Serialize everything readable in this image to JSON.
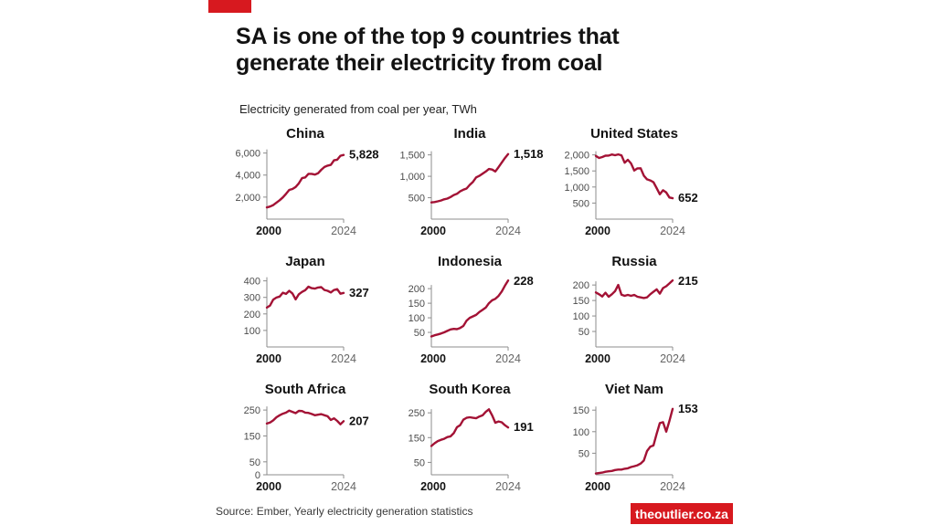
{
  "page": {
    "title_line1": "SA is one of the top 9 countries that",
    "title_line2": "generate their electricity from coal",
    "subtitle": "Electricity generated from coal per year, TWh",
    "source": "Source: Ember, Yearly electricity generation statistics",
    "badge": "theoutlier.co.za"
  },
  "colors": {
    "accent_red": "#d7191f",
    "line_red": "#a31235",
    "axis_gray": "#8c8c8c",
    "tick_label_gray": "#4c4c4c",
    "year_end_gray": "#666666",
    "text_dark": "#121212"
  },
  "chart_data": [
    {
      "type": "line",
      "title": "China",
      "end_label": "5,828",
      "yticks": [
        2000,
        4000,
        6000
      ],
      "ylim": [
        0,
        6300
      ],
      "x_start": 2000,
      "x_end": 2024,
      "xtick_labels": [
        "2000",
        "2024"
      ],
      "values": [
        1060,
        1145,
        1280,
        1500,
        1715,
        1970,
        2300,
        2655,
        2735,
        2915,
        3250,
        3720,
        3785,
        4110,
        4115,
        4045,
        4165,
        4475,
        4730,
        4855,
        4920,
        5340,
        5400,
        5755,
        5828
      ]
    },
    {
      "type": "line",
      "title": "India",
      "end_label": "1,518",
      "yticks": [
        500,
        1000,
        1500
      ],
      "ylim": [
        0,
        1620
      ],
      "x_start": 2000,
      "x_end": 2024,
      "xtick_labels": [
        "2000",
        "2024"
      ],
      "values": [
        390,
        398,
        416,
        434,
        462,
        479,
        516,
        562,
        590,
        647,
        687,
        715,
        800,
        870,
        975,
        1010,
        1062,
        1110,
        1171,
        1157,
        1113,
        1213,
        1319,
        1427,
        1518
      ]
    },
    {
      "type": "line",
      "title": "United States",
      "end_label": "652",
      "yticks": [
        500,
        1000,
        1500,
        2000
      ],
      "ylim": [
        0,
        2160
      ],
      "x_start": 2000,
      "x_end": 2024,
      "xtick_labels": [
        "2000",
        "2024"
      ],
      "values": [
        1966,
        1904,
        1933,
        1974,
        1978,
        2013,
        1990,
        2016,
        1986,
        1756,
        1847,
        1733,
        1514,
        1581,
        1582,
        1352,
        1239,
        1206,
        1150,
        966,
        774,
        899,
        831,
        675,
        652
      ]
    },
    {
      "type": "line",
      "title": "Japan",
      "end_label": "327",
      "yticks": [
        100,
        200,
        300,
        400
      ],
      "ylim": [
        0,
        420
      ],
      "x_start": 2000,
      "x_end": 2024,
      "xtick_labels": [
        "2000",
        "2024"
      ],
      "values": [
        238,
        251,
        287,
        299,
        305,
        328,
        321,
        340,
        324,
        288,
        319,
        333,
        344,
        365,
        356,
        353,
        360,
        362,
        345,
        340,
        330,
        345,
        350,
        322,
        327
      ]
    },
    {
      "type": "line",
      "title": "Indonesia",
      "end_label": "228",
      "yticks": [
        50,
        100,
        150,
        200
      ],
      "ylim": [
        0,
        238
      ],
      "x_start": 2000,
      "x_end": 2024,
      "xtick_labels": [
        "2000",
        "2024"
      ],
      "values": [
        36,
        40,
        43,
        46,
        50,
        55,
        60,
        62,
        61,
        65,
        72,
        90,
        100,
        105,
        110,
        120,
        127,
        135,
        150,
        160,
        165,
        175,
        190,
        210,
        228
      ]
    },
    {
      "type": "line",
      "title": "Russia",
      "end_label": "215",
      "yticks": [
        50,
        100,
        150,
        200
      ],
      "ylim": [
        0,
        224
      ],
      "x_start": 2000,
      "x_end": 2024,
      "xtick_labels": [
        "2000",
        "2024"
      ],
      "values": [
        176,
        170,
        163,
        175,
        162,
        170,
        180,
        200,
        169,
        165,
        168,
        165,
        168,
        162,
        160,
        158,
        160,
        170,
        178,
        186,
        172,
        190,
        196,
        205,
        215
      ]
    },
    {
      "type": "line",
      "title": "South Africa",
      "end_label": "207",
      "yticks": [
        0,
        50,
        150,
        250
      ],
      "ylim": [
        0,
        268
      ],
      "x_start": 2000,
      "x_end": 2024,
      "xtick_labels": [
        "2000",
        "2024"
      ],
      "values": [
        198,
        202,
        210,
        222,
        230,
        236,
        240,
        248,
        243,
        238,
        247,
        246,
        240,
        239,
        235,
        230,
        232,
        234,
        230,
        226,
        212,
        218,
        208,
        195,
        207
      ]
    },
    {
      "type": "line",
      "title": "South Korea",
      "end_label": "191",
      "yticks": [
        50,
        150,
        250
      ],
      "ylim": [
        0,
        280
      ],
      "x_start": 2000,
      "x_end": 2024,
      "xtick_labels": [
        "2000",
        "2024"
      ],
      "values": [
        116,
        127,
        136,
        141,
        145,
        152,
        155,
        168,
        192,
        200,
        222,
        230,
        232,
        230,
        228,
        235,
        240,
        254,
        264,
        240,
        210,
        215,
        212,
        200,
        191
      ]
    },
    {
      "type": "line",
      "title": "Viet Nam",
      "end_label": "153",
      "yticks": [
        50,
        100,
        150
      ],
      "ylim": [
        0,
        161
      ],
      "x_start": 2000,
      "x_end": 2024,
      "xtick_labels": [
        "2000",
        "2024"
      ],
      "values": [
        3,
        4,
        5,
        7,
        8,
        9,
        11,
        12,
        12,
        14,
        15,
        18,
        20,
        22,
        26,
        33,
        55,
        65,
        68,
        95,
        120,
        122,
        100,
        125,
        153
      ]
    }
  ]
}
